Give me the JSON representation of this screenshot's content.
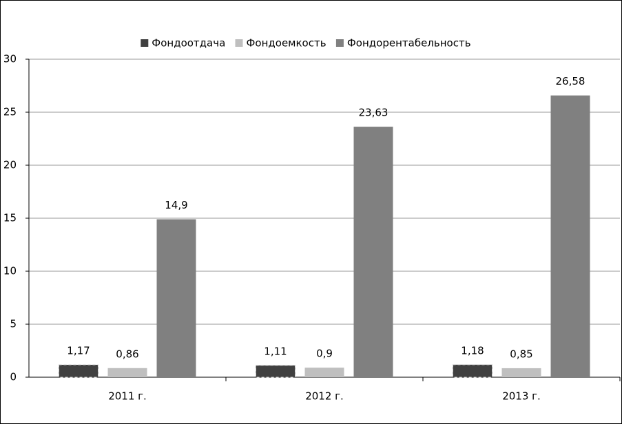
{
  "chart_data": {
    "type": "bar",
    "categories": [
      "2011 г.",
      "2012 г.",
      "2013 г."
    ],
    "series": [
      {
        "name": "Фондоотдача",
        "color": "#404040",
        "values": [
          1.17,
          1.11,
          1.18
        ],
        "value_labels": [
          "1,17",
          "1,11",
          "1,18"
        ]
      },
      {
        "name": "Фондоемкость",
        "color": "#bfbfbf",
        "values": [
          0.86,
          0.9,
          0.85
        ],
        "value_labels": [
          "0,86",
          "0,9",
          "0,85"
        ]
      },
      {
        "name": "Фондорентабельность",
        "color": "#808080",
        "values": [
          14.9,
          23.63,
          26.58
        ],
        "value_labels": [
          "14,9",
          "23,63",
          "26,58"
        ]
      }
    ],
    "ylim": [
      0,
      30
    ],
    "yticks": [
      0,
      5,
      10,
      15,
      20,
      25,
      30
    ],
    "grid": true,
    "legend": "top"
  }
}
